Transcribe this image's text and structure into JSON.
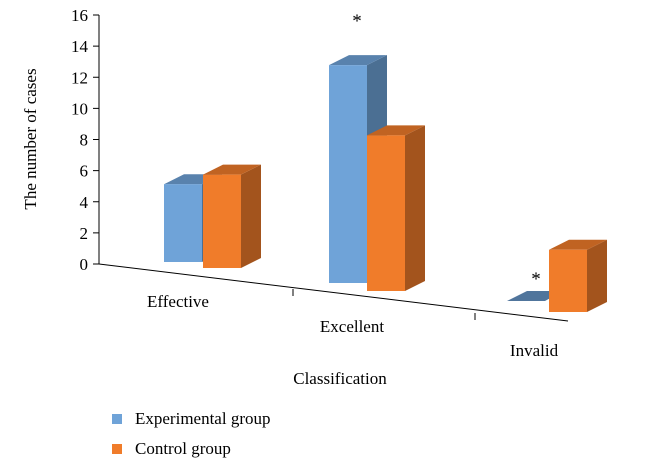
{
  "chart_data": {
    "type": "bar",
    "title": "",
    "xlabel": "Classification",
    "ylabel": "The number of cases",
    "categories": [
      "Effective",
      "Excellent",
      "Invalid"
    ],
    "series": [
      {
        "name": "Experimental group",
        "values": [
          5,
          14,
          0
        ],
        "color": "#6fa3d8"
      },
      {
        "name": "Control group",
        "values": [
          6,
          10,
          4
        ],
        "color": "#f07c2a"
      }
    ],
    "ylim": [
      0,
      16
    ],
    "yticks": [
      "0",
      "2",
      "4",
      "6",
      "8",
      "10",
      "12",
      "14",
      "16"
    ],
    "annotations": [
      {
        "text": "*",
        "category": "Excellent"
      },
      {
        "text": "*",
        "category": "Invalid"
      }
    ],
    "legend": "bottom-left",
    "grid": false
  }
}
